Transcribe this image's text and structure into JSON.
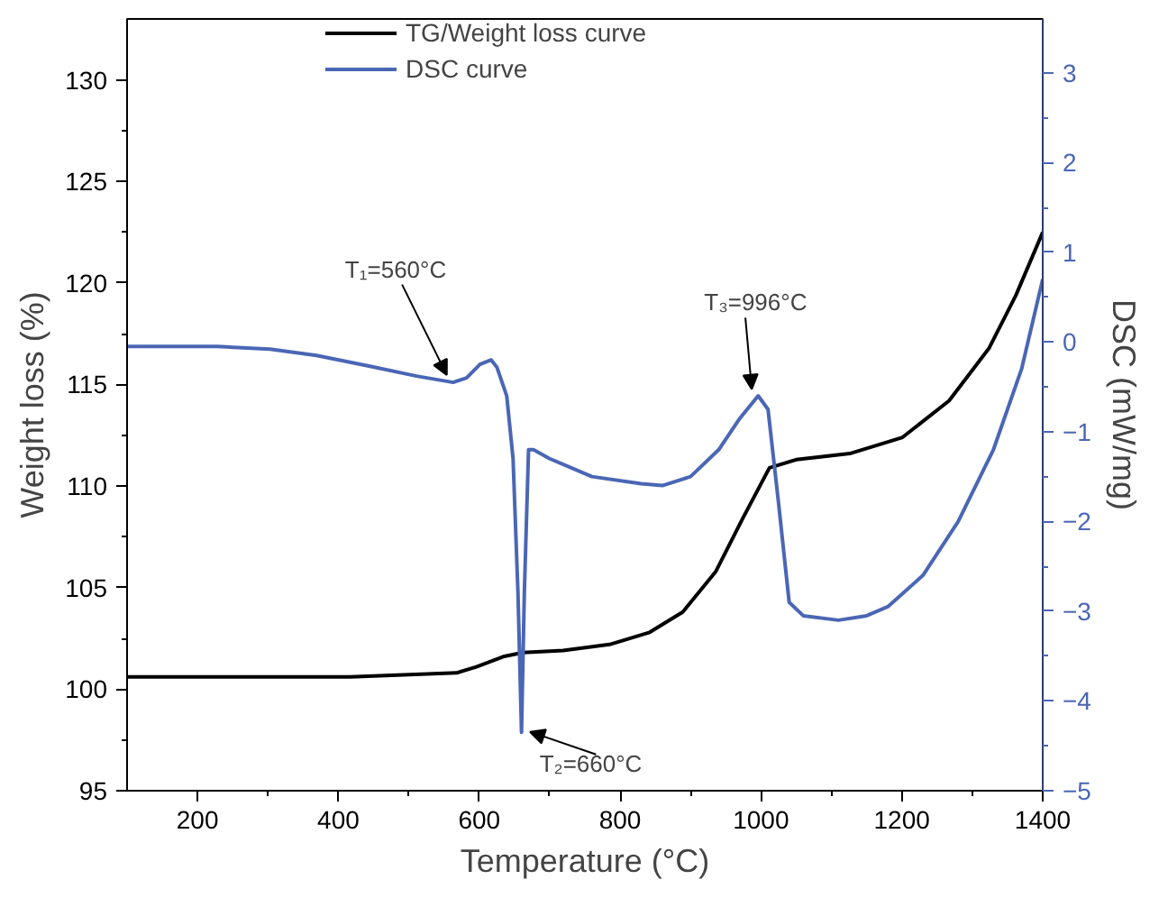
{
  "chart_data": {
    "type": "line",
    "xlabel": "Temperature (°C)",
    "ylabel": "Weight loss (%)",
    "y2label": "DSC (mW/mg)",
    "xlim": [
      100,
      1400
    ],
    "xticks": [
      200,
      400,
      600,
      800,
      1000,
      1200,
      1400
    ],
    "ylim": [
      95,
      133
    ],
    "yticks": [
      95,
      100,
      105,
      110,
      115,
      120,
      125,
      130
    ],
    "y2lim": [
      -5,
      3.6
    ],
    "y2ticks": [
      -5,
      -4,
      -3,
      -2,
      -1,
      0,
      1,
      2,
      3
    ],
    "grid": false,
    "legend": "top left",
    "marker": "none",
    "line_style": "solid",
    "series": [
      {
        "name": "TG/Weight loss curve",
        "color": "#000000",
        "x": [
          100,
          417,
          568,
          596,
          634,
          662,
          719,
          785,
          842,
          889,
          936,
          974,
          1012,
          1050,
          1126,
          1201,
          1267,
          1324,
          1362,
          1400
        ],
        "values": [
          100.6,
          100.6,
          100.8,
          101.1,
          101.6,
          101.8,
          101.9,
          102.2,
          102.8,
          103.8,
          105.8,
          108.4,
          110.9,
          111.3,
          111.6,
          112.4,
          114.2,
          116.8,
          119.4,
          122.5
        ]
      },
      {
        "name": "DSC curve",
        "color": "#4a66b5",
        "axis": "y2",
        "x": [
          100,
          228,
          303,
          369,
          445,
          511,
          563,
          582,
          601,
          617,
          625,
          639,
          648,
          655,
          660,
          664,
          670,
          677,
          700,
          760,
          830,
          860,
          900,
          940,
          970,
          996,
          1010,
          1025,
          1040,
          1060,
          1110,
          1150,
          1180,
          1230,
          1280,
          1330,
          1370,
          1400
        ],
        "values": [
          -0.05,
          -0.05,
          -0.08,
          -0.15,
          -0.27,
          -0.38,
          -0.45,
          -0.4,
          -0.25,
          -0.2,
          -0.28,
          -0.6,
          -1.3,
          -2.8,
          -4.35,
          -2.8,
          -1.2,
          -1.2,
          -1.3,
          -1.5,
          -1.58,
          -1.6,
          -1.5,
          -1.2,
          -0.85,
          -0.6,
          -0.75,
          -1.8,
          -2.9,
          -3.05,
          -3.1,
          -3.05,
          -2.95,
          -2.6,
          -2.0,
          -1.2,
          -0.3,
          0.7
        ]
      }
    ],
    "annotations": [
      {
        "text": "T₁=560°C",
        "x": 563,
        "y": 115.1
      },
      {
        "text": "T₂=660°C",
        "x": 660,
        "y": 97.9
      },
      {
        "text": "T₃=996°C",
        "x": 996,
        "y": 114.4
      }
    ]
  }
}
